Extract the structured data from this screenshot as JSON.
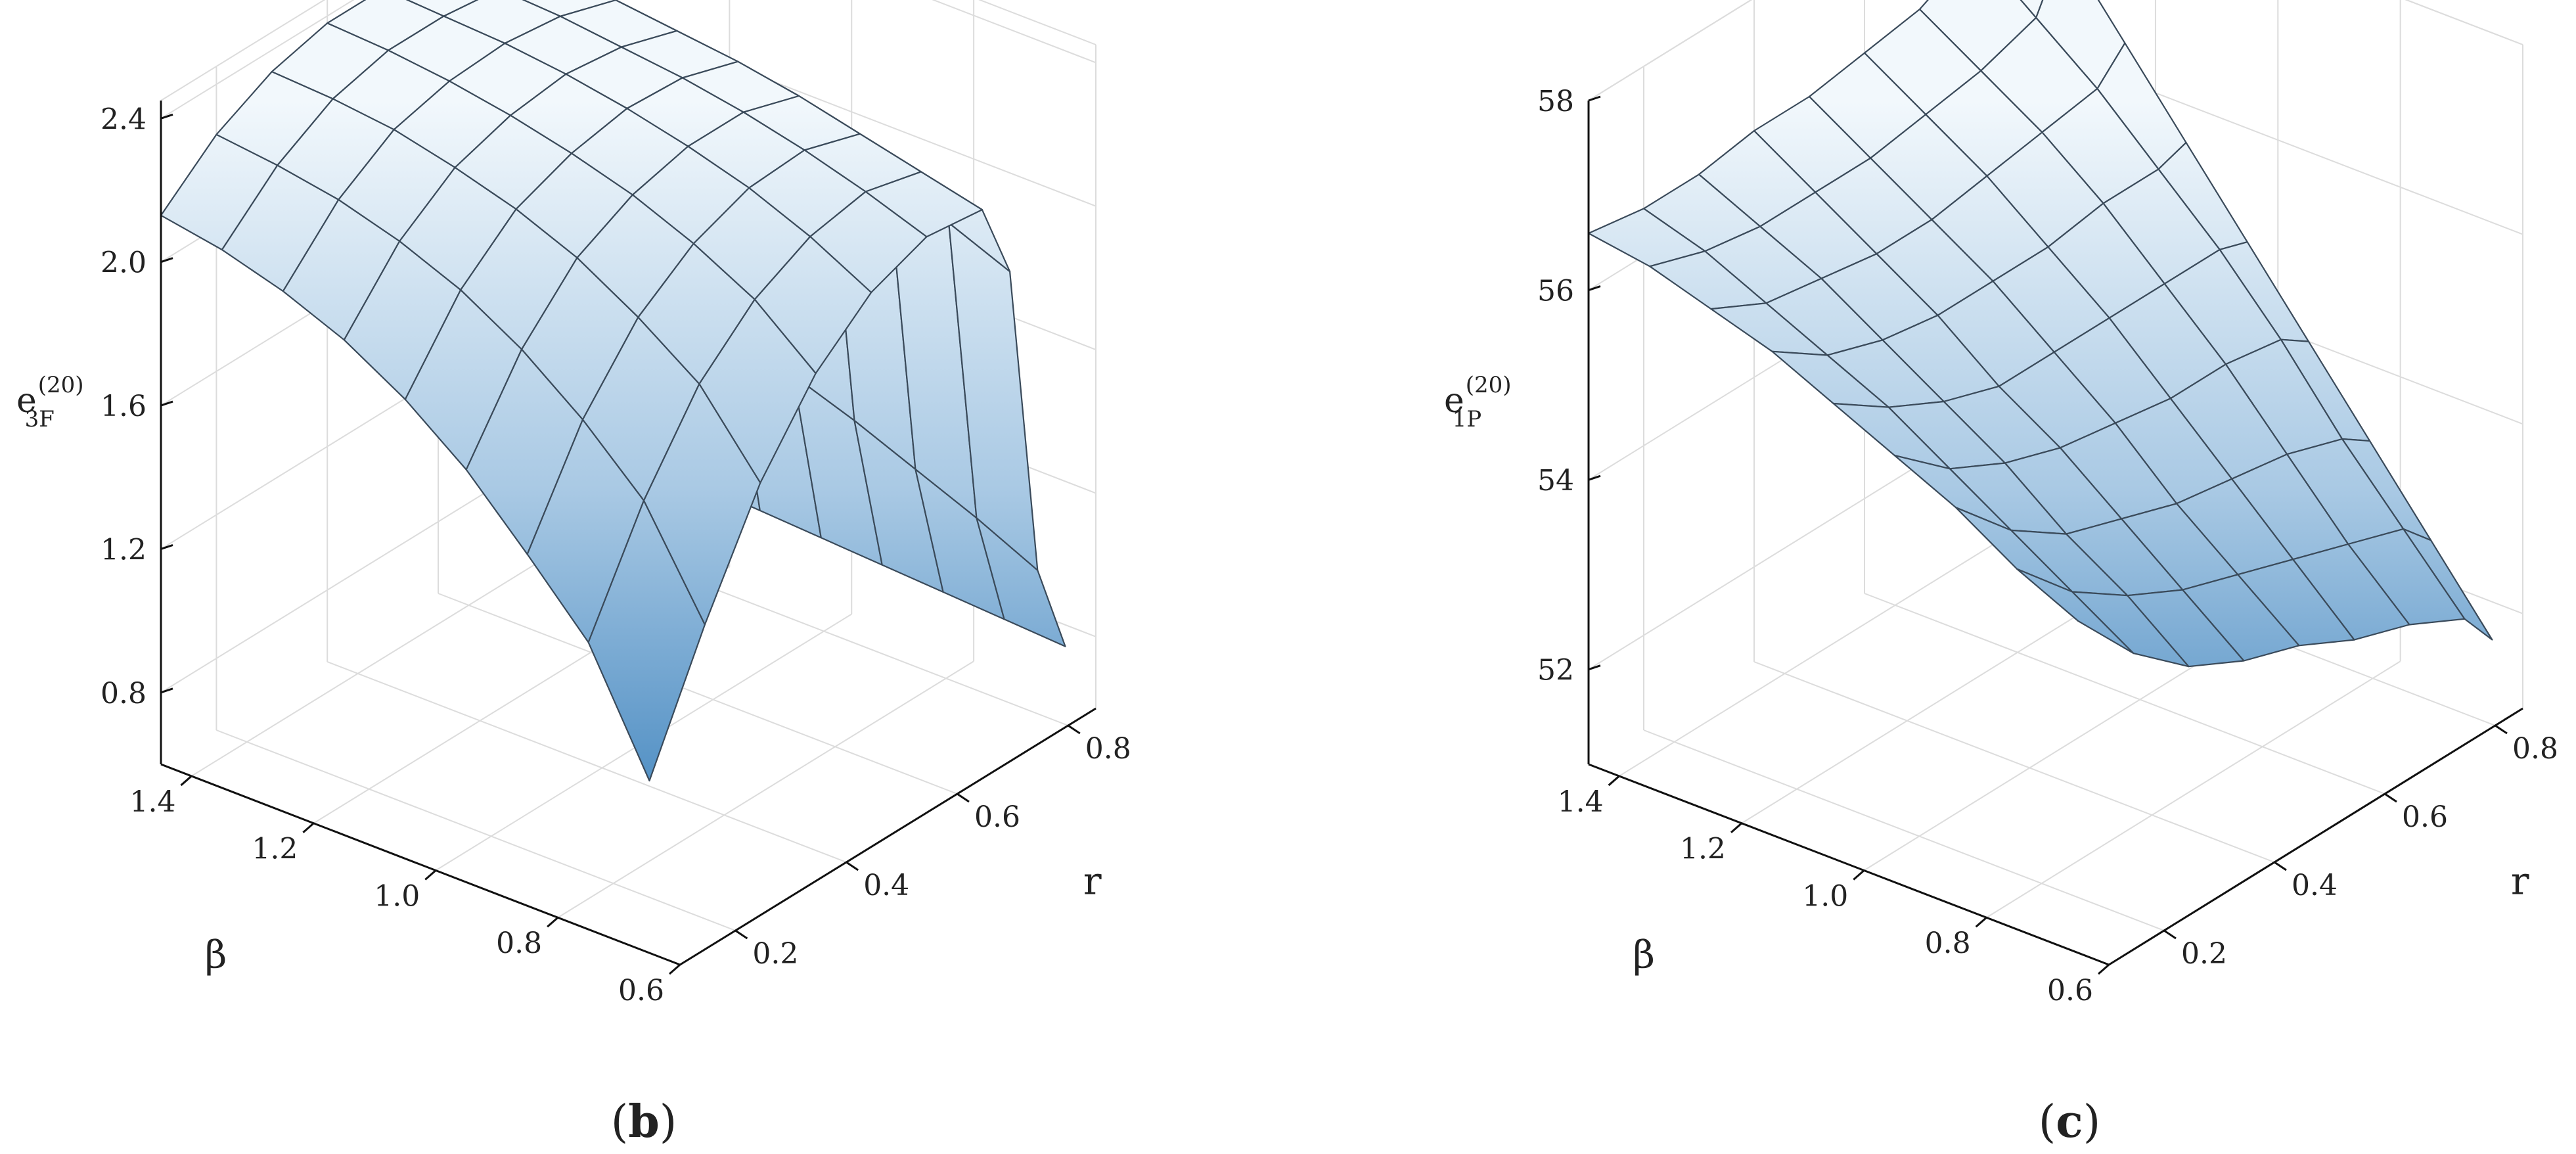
{
  "chart_data": [
    {
      "type": "surface",
      "panel_label": {
        "open": "(",
        "letter": "b",
        "close": ")"
      },
      "zlabel": {
        "base": "e",
        "sup": "(20)",
        "sub": "3F"
      },
      "xlabel": "β",
      "ylabel": "r",
      "beta_ticks": [
        "1.4",
        "1.2",
        "1.0",
        "0.8",
        "0.6"
      ],
      "r_ticks": [
        "0.2",
        "0.4",
        "0.6",
        "0.8"
      ],
      "z_ticks": [
        "0.8",
        "1.2",
        "1.6",
        "2.0",
        "2.4"
      ],
      "beta_range": [
        0.6,
        1.45
      ],
      "r_range": [
        0.1,
        0.85
      ],
      "z_range": [
        0.6,
        2.45
      ],
      "beta": [
        1.45,
        1.35,
        1.25,
        1.15,
        1.05,
        0.95,
        0.85,
        0.75,
        0.65
      ],
      "r": [
        0.1,
        0.2,
        0.3,
        0.4,
        0.5,
        0.6,
        0.7,
        0.75,
        0.8,
        0.85
      ],
      "z_rows": [
        [
          2.13,
          2.26,
          2.34,
          2.38,
          2.38,
          2.36,
          2.31,
          2.24,
          1.42,
          0.82
        ],
        [
          2.1,
          2.24,
          2.33,
          2.37,
          2.37,
          2.35,
          2.3,
          2.22,
          1.4,
          0.81
        ],
        [
          2.05,
          2.21,
          2.31,
          2.35,
          2.36,
          2.34,
          2.29,
          2.2,
          1.37,
          0.8
        ],
        [
          1.98,
          2.16,
          2.27,
          2.32,
          2.34,
          2.32,
          2.27,
          2.17,
          1.33,
          0.79
        ],
        [
          1.88,
          2.09,
          2.22,
          2.28,
          2.31,
          2.3,
          2.25,
          2.13,
          1.28,
          0.78
        ],
        [
          1.75,
          1.99,
          2.15,
          2.23,
          2.27,
          2.27,
          2.22,
          2.08,
          1.22,
          0.77
        ],
        [
          1.58,
          1.86,
          2.05,
          2.16,
          2.22,
          2.23,
          2.18,
          2.02,
          1.15,
          0.76
        ],
        [
          1.4,
          1.7,
          1.93,
          2.07,
          2.15,
          2.18,
          2.14,
          1.95,
          1.08,
          0.75
        ],
        [
          1.08,
          1.42,
          1.72,
          1.93,
          2.06,
          2.12,
          2.1,
          1.88,
          1.0,
          0.74
        ]
      ]
    },
    {
      "type": "surface",
      "panel_label": {
        "open": "(",
        "letter": "c",
        "close": ")"
      },
      "zlabel": {
        "base": "e",
        "sup": "(20)",
        "sub": "1P"
      },
      "xlabel": "β",
      "ylabel": "r",
      "beta_ticks": [
        "1.4",
        "1.2",
        "1.0",
        "0.8",
        "0.6"
      ],
      "r_ticks": [
        "0.2",
        "0.4",
        "0.6",
        "0.8"
      ],
      "z_ticks": [
        "52",
        "54",
        "56",
        "58"
      ],
      "beta_range": [
        0.6,
        1.45
      ],
      "r_range": [
        0.1,
        0.85
      ],
      "z_range": [
        51.0,
        58.0
      ],
      "beta": [
        1.45,
        1.35,
        1.25,
        1.15,
        1.05,
        0.95,
        0.85,
        0.75,
        0.65
      ],
      "r": [
        0.1,
        0.2,
        0.3,
        0.4,
        0.5,
        0.6,
        0.7,
        0.8,
        0.85
      ],
      "z_rows": [
        [
          56.6,
          56.5,
          56.5,
          56.6,
          56.6,
          56.7,
          56.8,
          57.1,
          58.0
        ],
        [
          56.5,
          56.3,
          56.2,
          56.2,
          56.2,
          56.3,
          56.4,
          56.6,
          57.2
        ],
        [
          56.3,
          56.0,
          55.9,
          55.8,
          55.8,
          55.9,
          56.0,
          56.1,
          56.4
        ],
        [
          56.1,
          55.7,
          55.5,
          55.4,
          55.4,
          55.4,
          55.5,
          55.5,
          55.6
        ],
        [
          55.8,
          55.4,
          55.1,
          54.9,
          54.9,
          54.9,
          54.9,
          54.9,
          54.8
        ],
        [
          55.5,
          55.0,
          54.7,
          54.5,
          54.4,
          54.3,
          54.3,
          54.2,
          54.0
        ],
        [
          55.2,
          54.6,
          54.2,
          54.0,
          53.8,
          53.7,
          53.6,
          53.4,
          53.2
        ],
        [
          54.8,
          54.2,
          53.8,
          53.5,
          53.3,
          53.1,
          52.9,
          52.7,
          52.4
        ],
        [
          54.5,
          53.8,
          53.3,
          53.0,
          52.8,
          52.5,
          52.3,
          52.0,
          51.6
        ]
      ]
    }
  ]
}
